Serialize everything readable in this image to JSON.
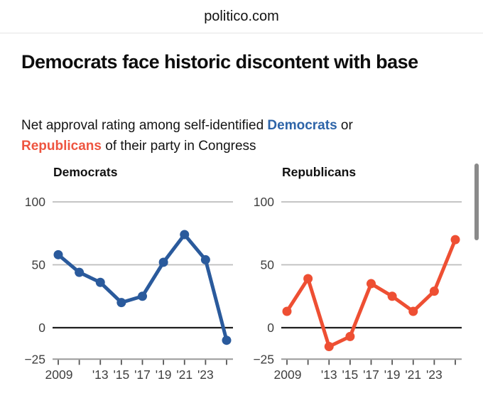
{
  "header": {
    "site": "politico.com"
  },
  "headline": "Democrats face historic discontent with base",
  "subtitle": {
    "prefix": "Net approval rating among self-identified ",
    "democrats": "Democrats",
    "middle": " or",
    "republicans": "Republicans",
    "suffix": " of their party in Congress"
  },
  "colors": {
    "democrat_blue_text": "#2d64a8",
    "democrat_blue_line": "#2a5a9c",
    "republican_red_text": "#ee5540",
    "republican_red_line": "#ee4f33",
    "grid_light": "#bdbdbd",
    "zero_line": "#1f1f1f",
    "axis_gray": "#9a9a9a",
    "tick_gray": "#555555",
    "label_gray": "#3f3f3f",
    "scrollbar_gray": "#8a8a8a"
  },
  "chart_data": [
    {
      "type": "line",
      "title": "Democrats",
      "color": "#2a5a9c",
      "x": [
        2009,
        2011,
        2013,
        2015,
        2017,
        2019,
        2021,
        2023,
        2025
      ],
      "values": [
        58,
        44,
        36,
        20,
        25,
        52,
        74,
        54,
        -10
      ],
      "ylim": [
        -25,
        100
      ],
      "yticks": [
        100,
        50,
        0,
        -25
      ],
      "ytick_labels": [
        "100",
        "50",
        "0",
        "−25"
      ],
      "xtick_labels": [
        "2009",
        "",
        "'13",
        "'15",
        "'17",
        "'19",
        "'21",
        "'23",
        ""
      ],
      "grid": true,
      "legend": "none"
    },
    {
      "type": "line",
      "title": "Republicans",
      "color": "#ee4f33",
      "x": [
        2009,
        2011,
        2013,
        2015,
        2017,
        2019,
        2021,
        2023,
        2025
      ],
      "values": [
        13,
        39,
        -15,
        -7,
        35,
        25,
        13,
        29,
        70
      ],
      "ylim": [
        -25,
        100
      ],
      "yticks": [
        100,
        50,
        0,
        -25
      ],
      "ytick_labels": [
        "100",
        "50",
        "0",
        "−25"
      ],
      "xtick_labels": [
        "2009",
        "",
        "'13",
        "'15",
        "'17",
        "'19",
        "'21",
        "'23",
        ""
      ],
      "grid": true,
      "legend": "none"
    }
  ]
}
